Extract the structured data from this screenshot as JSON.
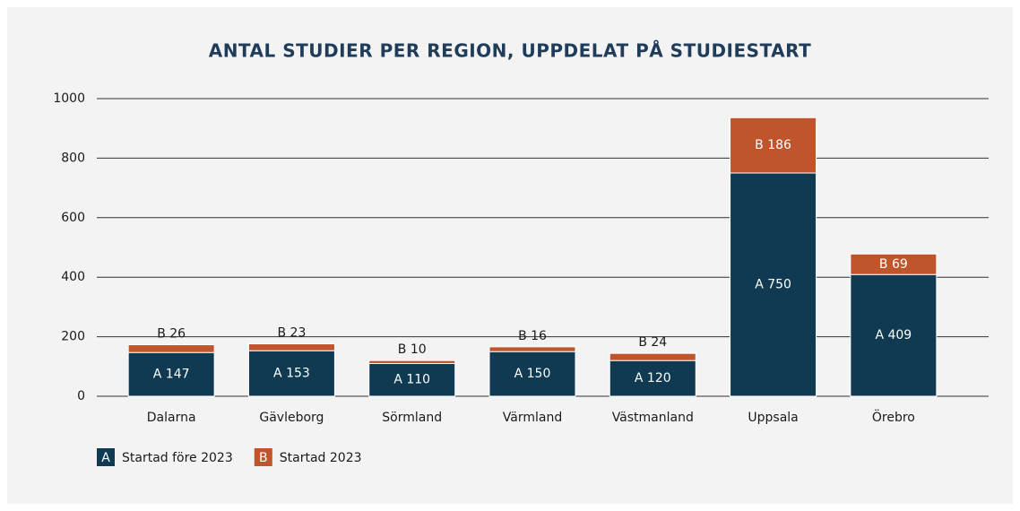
{
  "chart_data": {
    "type": "stacked_bar",
    "title": "ANTAL STUDIER PER REGION, UPPDELAT PÅ STUDIESTART",
    "categories": [
      "Dalarna",
      "Gävleborg",
      "Sörmland",
      "Värmland",
      "Västmanland",
      "Uppsala",
      "Örebro"
    ],
    "series": [
      {
        "name": "Startad före 2023",
        "letter": "A",
        "color": "#0f3a52",
        "values": [
          147,
          153,
          110,
          150,
          120,
          750,
          409
        ],
        "value_labels": [
          "A  147",
          "A  153",
          "A  110",
          "A  150",
          "A  120",
          "A  750",
          "A  409"
        ]
      },
      {
        "name": "Startad 2023",
        "letter": "B",
        "color": "#c0542a",
        "values": [
          26,
          23,
          10,
          16,
          24,
          186,
          69
        ],
        "value_labels": [
          "B  26",
          "B  23",
          "B  10",
          "B  16",
          "B  24",
          "B  186",
          "B  69"
        ]
      }
    ],
    "ylim": [
      0,
      1000
    ],
    "yticks": [
      0,
      200,
      400,
      600,
      800,
      1000
    ],
    "grid": true,
    "legend": "bottom-left"
  }
}
